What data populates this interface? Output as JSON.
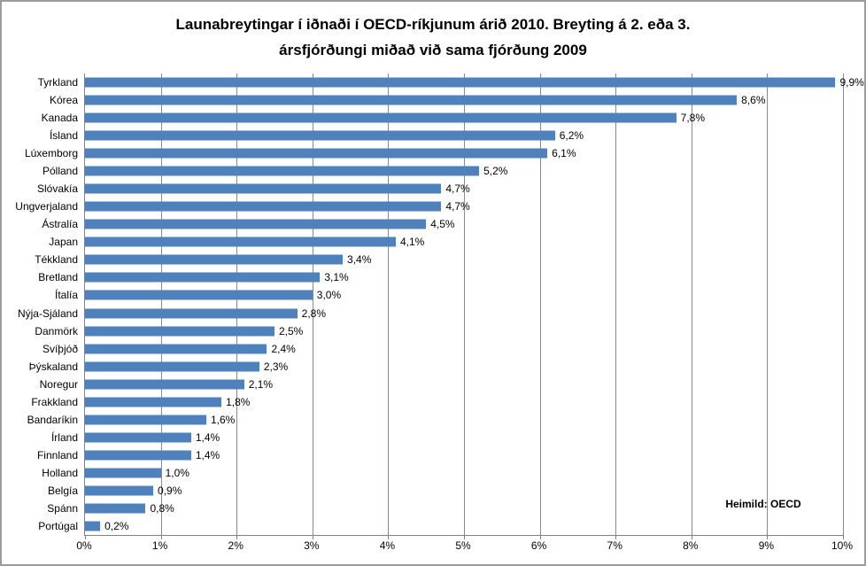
{
  "header": {
    "title_line1": "Launabreytingar í iðnaði í OECD-ríkjunum árið 2010. Breyting á 2. eða 3.",
    "title_line2": "ársfjórðungi miðað við sama fjórðung 2009"
  },
  "source_note": "Heimild: OECD",
  "colors": {
    "bar": "#4F81BD",
    "gridline": "#8A8A8A",
    "axis": "#808080",
    "frame": "#9C9C9C",
    "text": "#000000",
    "background": "#FFFFFF"
  },
  "x_axis": {
    "min": 0,
    "max": 10,
    "tick_labels": [
      "0%",
      "1%",
      "2%",
      "3%",
      "4%",
      "5%",
      "6%",
      "7%",
      "8%",
      "9%",
      "10%"
    ]
  },
  "chart_data": {
    "type": "bar",
    "orientation": "horizontal",
    "title": "Launabreytingar í iðnaði í OECD-ríkjunum árið 2010. Breyting á 2. eða 3. ársfjórðungi miðað við sama fjórðung 2009",
    "categories": [
      "Tyrkland",
      "Kórea",
      "Kanada",
      "Ísland",
      "Lúxemborg",
      "Pólland",
      "Slóvakía",
      "Ungverjaland",
      "Ástralía",
      "Japan",
      "Tékkland",
      "Bretland",
      "Ítalía",
      "Nýja-Sjáland",
      "Danmörk",
      "Svíþjóð",
      "Þýskaland",
      "Noregur",
      "Frakkland",
      "Bandaríkin",
      "Írland",
      "Finnland",
      "Holland",
      "Belgía",
      "Spánn",
      "Portúgal"
    ],
    "values": [
      9.9,
      8.6,
      7.8,
      6.2,
      6.1,
      5.2,
      4.7,
      4.7,
      4.5,
      4.1,
      3.4,
      3.1,
      3.0,
      2.8,
      2.5,
      2.4,
      2.3,
      2.1,
      1.8,
      1.6,
      1.4,
      1.4,
      1.0,
      0.9,
      0.8,
      0.2
    ],
    "value_labels": [
      "9,9%",
      "8,6%",
      "7,8%",
      "6,2%",
      "6,1%",
      "5,2%",
      "4,7%",
      "4,7%",
      "4,5%",
      "4,1%",
      "3,4%",
      "3,1%",
      "3,0%",
      "2,8%",
      "2,5%",
      "2,4%",
      "2,3%",
      "2,1%",
      "1,8%",
      "1,6%",
      "1,4%",
      "1,4%",
      "1,0%",
      "0,9%",
      "0,8%",
      "0,2%"
    ],
    "xlabel": "",
    "ylabel": "",
    "xlim": [
      0,
      10
    ],
    "grid": true,
    "legend": false,
    "annotations": [
      "Heimild: OECD"
    ]
  }
}
